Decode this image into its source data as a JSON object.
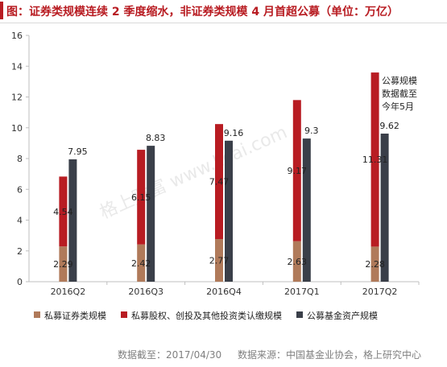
{
  "title": "图：证券类规模连续 2 季度缩水，非证券类规模 4 月首超公募（单位：万亿）",
  "watermark": "格上财富 www.licai.com",
  "source_note": {
    "date": "数据截至：2017/04/30",
    "org": "数据来源：中国基金业协会，格上研究中心"
  },
  "annotation": [
    "公募规模",
    "数据截至",
    "今年5月"
  ],
  "chart_data": {
    "type": "bar",
    "stacked_series": [
      "私募证券类规模",
      "私募股权、创投及其他投资类认缴规模"
    ],
    "categories": [
      "2016Q2",
      "2016Q3",
      "2016Q4",
      "2017Q1",
      "2017Q2"
    ],
    "ylim": [
      0,
      16
    ],
    "yticks": [
      0,
      2,
      4,
      6,
      8,
      10,
      12,
      14,
      16
    ],
    "ytick_labels": [
      "0",
      "2",
      "4",
      "6",
      "8",
      "10",
      "12",
      "14",
      "16"
    ],
    "grid": false,
    "legend_position": "bottom",
    "series": [
      {
        "name": "私募证券类规模",
        "color": "#b07a5a",
        "values": [
          2.29,
          2.42,
          2.77,
          2.63,
          2.28
        ],
        "labels": [
          "2.29",
          "2.42",
          "2.77",
          "2.63",
          "2.28"
        ]
      },
      {
        "name": "私募股权、创投及其他投资类认缴规模",
        "color": "#b81c22",
        "values": [
          4.54,
          6.15,
          7.47,
          9.17,
          11.31
        ],
        "labels": [
          "4.54",
          "6.15",
          "7.47",
          "9.17",
          "11.31"
        ]
      },
      {
        "name": "公募基金资产规模",
        "color": "#3a3f49",
        "values": [
          7.95,
          8.83,
          9.16,
          9.3,
          9.62
        ],
        "labels": [
          "7.95",
          "8.83",
          "9.16",
          "9.3",
          "9.62"
        ]
      }
    ]
  }
}
